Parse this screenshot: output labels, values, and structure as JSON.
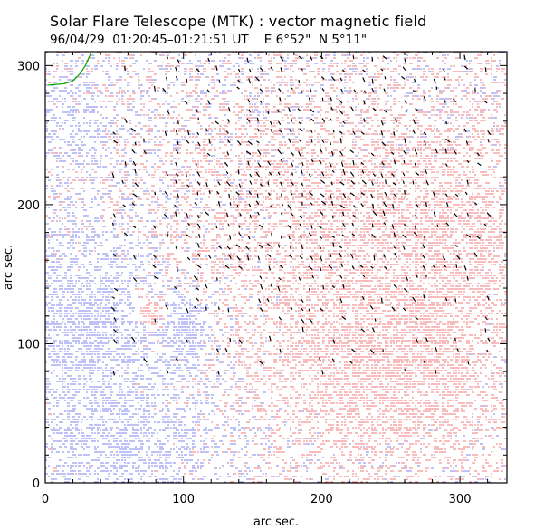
{
  "chart_data": {
    "type": "vector-field-map",
    "title": "Solar Flare Telescope (MTK) : vector magnetic field",
    "subtitle": "96/04/29  01:20:45–01:21:51 UT    E 6°52\"  N 5°11\"",
    "xlabel": "arc sec.",
    "ylabel": "arc sec.",
    "xlim": [
      0,
      334
    ],
    "ylim": [
      0,
      310
    ],
    "xticks": [
      0,
      100,
      200,
      300
    ],
    "yticks": [
      0,
      100,
      200,
      300
    ],
    "xtick_labels": [
      "0",
      "100",
      "200",
      "300"
    ],
    "ytick_labels": [
      "0",
      "100",
      "200",
      "300"
    ],
    "grid": false,
    "colors": {
      "positive_polarity": "#f07a7a",
      "negative_polarity": "#7f86ee",
      "vectors": "#000000",
      "contour": "#00a800"
    },
    "polarity_regions": [
      {
        "polarity": "negative",
        "x": 30,
        "y": 120,
        "rx": 45,
        "ry": 60,
        "strength": 0.6
      },
      {
        "polarity": "negative",
        "x": 100,
        "y": 110,
        "rx": 15,
        "ry": 20,
        "strength": 0.95
      },
      {
        "polarity": "negative",
        "x": 60,
        "y": 30,
        "rx": 70,
        "ry": 50,
        "strength": 0.45
      },
      {
        "polarity": "negative",
        "x": 15,
        "y": 260,
        "rx": 30,
        "ry": 40,
        "strength": 0.35
      },
      {
        "polarity": "positive",
        "x": 75,
        "y": 125,
        "rx": 9,
        "ry": 11,
        "strength": 0.95
      },
      {
        "polarity": "positive",
        "x": 240,
        "y": 80,
        "rx": 85,
        "ry": 70,
        "strength": 0.6
      },
      {
        "polarity": "positive",
        "x": 200,
        "y": 200,
        "rx": 110,
        "ry": 70,
        "strength": 0.35
      },
      {
        "polarity": "positive",
        "x": 300,
        "y": 190,
        "rx": 60,
        "ry": 80,
        "strength": 0.3
      }
    ],
    "vector_field": {
      "region_x": [
        50,
        320
      ],
      "region_y": [
        80,
        305
      ],
      "spacing": 7.5,
      "length": 5,
      "dominant_angle_deg": -60
    },
    "contour": {
      "x": [
        2,
        8,
        14,
        20,
        25,
        29,
        33
      ],
      "y": [
        286,
        286.5,
        287,
        289,
        294,
        300,
        309
      ]
    }
  }
}
